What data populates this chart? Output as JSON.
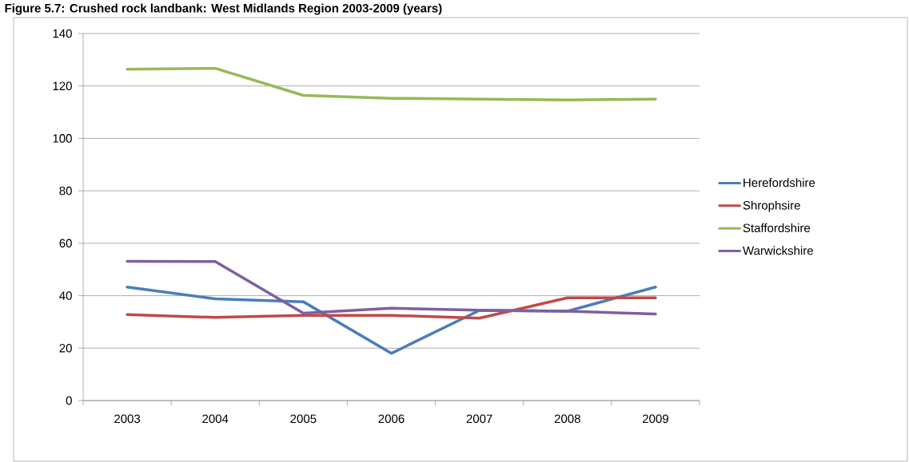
{
  "chart_data": {
    "type": "line",
    "title": "Figure 5.7: Crushed rock landbank: West Midlands Region 2003-2009 (years)",
    "categories": [
      "2003",
      "2004",
      "2005",
      "2006",
      "2007",
      "2008",
      "2009"
    ],
    "series": [
      {
        "name": "Herefordshire",
        "color": "#4a7ebb",
        "values": [
          43.3,
          38.8,
          37.7,
          18,
          34.4,
          34.1,
          43.3
        ]
      },
      {
        "name": "Shrophsire",
        "color": "#be4b48",
        "values": [
          32.8,
          31.7,
          32.5,
          32.5,
          31.4,
          39.2,
          39.2
        ]
      },
      {
        "name": "Staffordshire",
        "color": "#98b954",
        "values": [
          126.4,
          126.7,
          116.4,
          115.3,
          115.0,
          114.7,
          115.0
        ]
      },
      {
        "name": "Warwickshire",
        "color": "#7d60a0",
        "values": [
          53.1,
          53.0,
          33.3,
          35.2,
          34.5,
          34.1,
          33.0
        ]
      }
    ],
    "ylim": [
      0,
      140
    ],
    "yticks": [
      0,
      20,
      40,
      60,
      80,
      100,
      120,
      140
    ],
    "grid": "y",
    "legend": "right",
    "marker": "none",
    "line_style": "solid"
  }
}
